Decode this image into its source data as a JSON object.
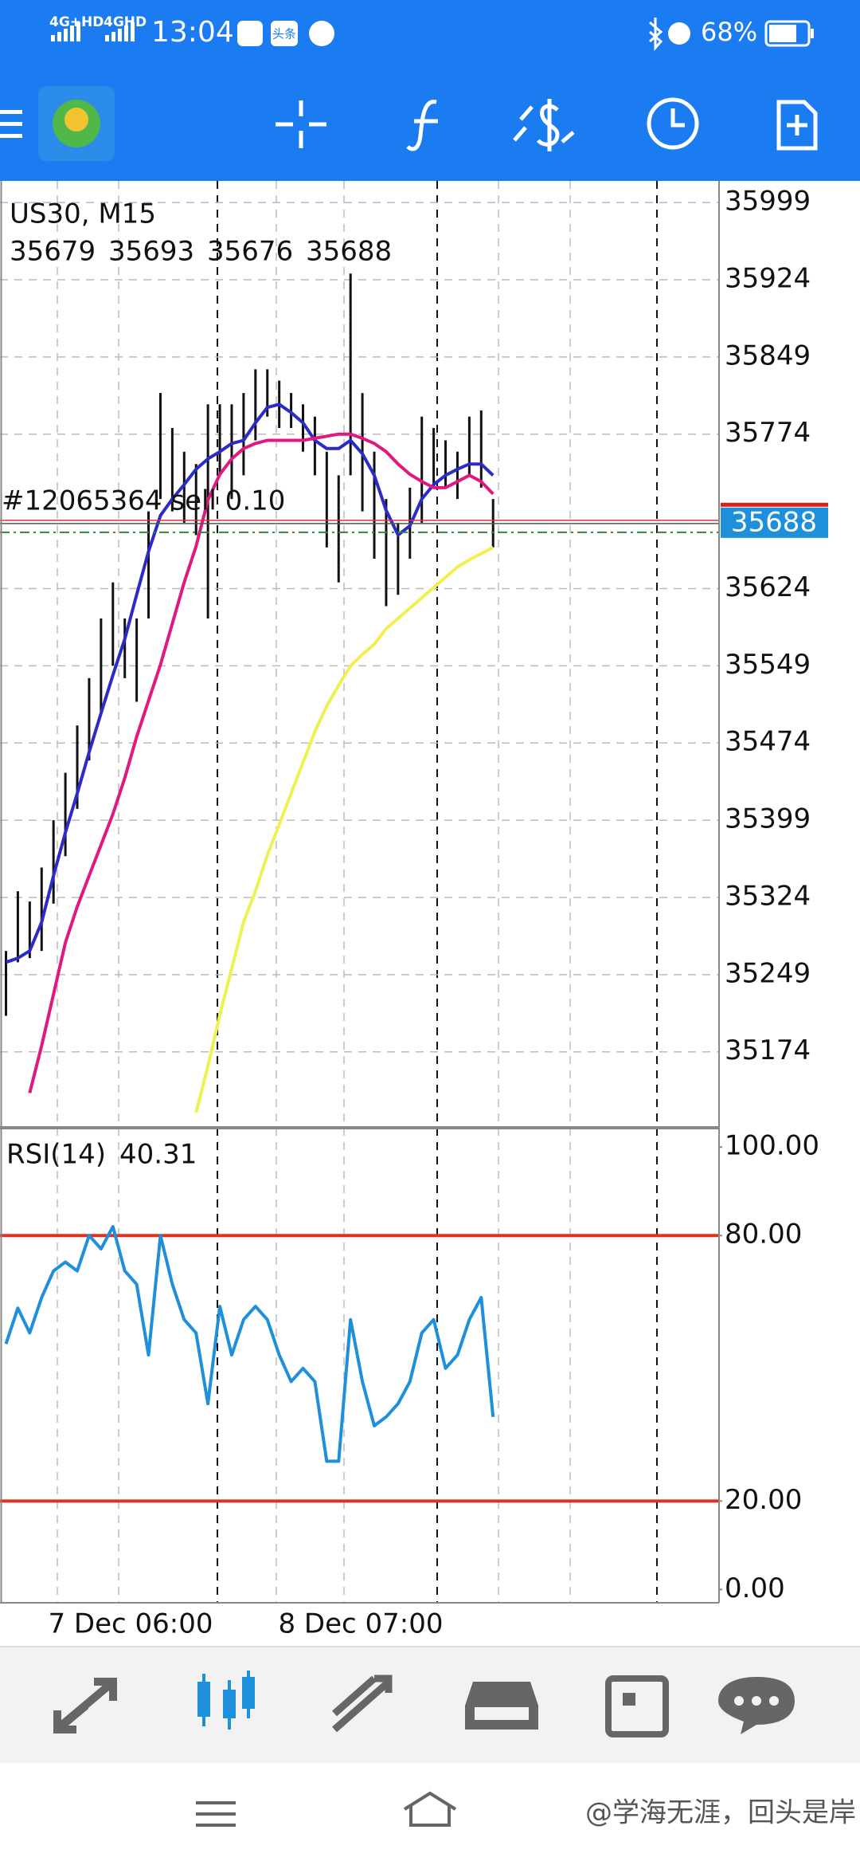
{
  "status_bar": {
    "network1": "4G+HD",
    "network2": "4GHD",
    "time": "13:04",
    "app_badge": "头条",
    "battery": "68%"
  },
  "chart_data": [
    {
      "type": "hilo",
      "title": "US30, M15",
      "ohlc": [
        35679,
        35693,
        35676,
        35688
      ],
      "high": [
        35272,
        35330,
        35320,
        35353,
        35399,
        35445,
        35491,
        35537,
        35595,
        35630,
        35595,
        35595,
        35699,
        35814,
        35780,
        35757,
        35745,
        35803,
        35803,
        35803,
        35814,
        35837,
        35837,
        35826,
        35814,
        35803,
        35791,
        35757,
        35734,
        35930,
        35814,
        35757,
        35711,
        35688,
        35722,
        35791,
        35780,
        35768,
        35757,
        35791,
        35797,
        35711
      ],
      "low": [
        35209,
        35261,
        35265,
        35272,
        35318,
        35364,
        35410,
        35457,
        35503,
        35549,
        35537,
        35514,
        35595,
        35711,
        35699,
        35688,
        35676,
        35595,
        35734,
        35711,
        35734,
        35768,
        35791,
        35780,
        35780,
        35757,
        35734,
        35664,
        35630,
        35734,
        35699,
        35653,
        35607,
        35618,
        35653,
        35688,
        35722,
        35722,
        35711,
        35734,
        35722,
        35664
      ],
      "series": [
        {
          "color": "#2b2bc8",
          "values": [
            35261,
            35265,
            35272,
            35300,
            35345,
            35387,
            35425,
            35465,
            35503,
            35540,
            35575,
            35618,
            35660,
            35695,
            35711,
            35725,
            35740,
            35750,
            35757,
            35765,
            35768,
            35785,
            35800,
            35803,
            35795,
            35785,
            35768,
            35760,
            35760,
            35768,
            35755,
            35734,
            35700,
            35676,
            35685,
            35711,
            35725,
            35734,
            35740,
            35745,
            35745,
            35734
          ]
        },
        {
          "color": "#e0187f",
          "values": [
            null,
            null,
            35134,
            35180,
            35230,
            35280,
            35315,
            35345,
            35375,
            35405,
            35440,
            35480,
            35515,
            35550,
            35590,
            35630,
            35665,
            35710,
            35735,
            35750,
            35760,
            35765,
            35768,
            35768,
            35768,
            35768,
            35770,
            35772,
            35774,
            35774,
            35770,
            35765,
            35757,
            35745,
            35735,
            35728,
            35722,
            35722,
            35728,
            35734,
            35728,
            35716
          ]
        },
        {
          "color": "#f0f050",
          "values": [
            null,
            null,
            null,
            null,
            null,
            null,
            null,
            null,
            null,
            null,
            null,
            null,
            null,
            null,
            null,
            null,
            35115,
            35160,
            35210,
            35255,
            35300,
            35330,
            35365,
            35395,
            35425,
            35455,
            35485,
            35510,
            35530,
            35549,
            35560,
            35570,
            35585,
            35595,
            35605,
            35615,
            35625,
            35635,
            35645,
            35652,
            35658,
            35664
          ]
        }
      ],
      "ylim": [
        35101,
        36020
      ],
      "yticks": [
        35174,
        35249,
        35324,
        35399,
        35474,
        35549,
        35624,
        35774,
        35849,
        35924,
        35999
      ],
      "grid": true,
      "current_price": 35688,
      "order_label": "#12065364 sell 0.10",
      "x_labels": [
        "7 Dec 06:00",
        "8 Dec 07:00"
      ]
    },
    {
      "type": "line",
      "title": "RSI(14)",
      "value": 40.31,
      "series": [
        {
          "color": "#1e8fdb",
          "values": [
            55.5,
            63.6,
            58,
            66,
            72,
            74,
            72,
            80,
            77,
            82,
            72,
            69,
            53,
            80,
            69,
            61,
            58,
            42,
            64,
            53,
            61,
            64,
            61,
            53,
            47,
            50,
            47,
            29,
            29,
            61,
            47,
            37,
            39,
            42,
            47,
            58,
            61,
            50,
            53,
            61,
            66,
            39
          ]
        }
      ],
      "ylim": [
        -3,
        104
      ],
      "yticks": [
        {
          "value": 0,
          "label": "0.00"
        },
        {
          "value": 20,
          "label": "20.00"
        },
        {
          "value": 80,
          "label": "80.00"
        },
        {
          "value": 100,
          "label": "100.00"
        }
      ],
      "levels": [
        20,
        80
      ],
      "level_color": "#e0301e",
      "grid": false
    }
  ],
  "watermark": "@学海无涯，回头是岸"
}
